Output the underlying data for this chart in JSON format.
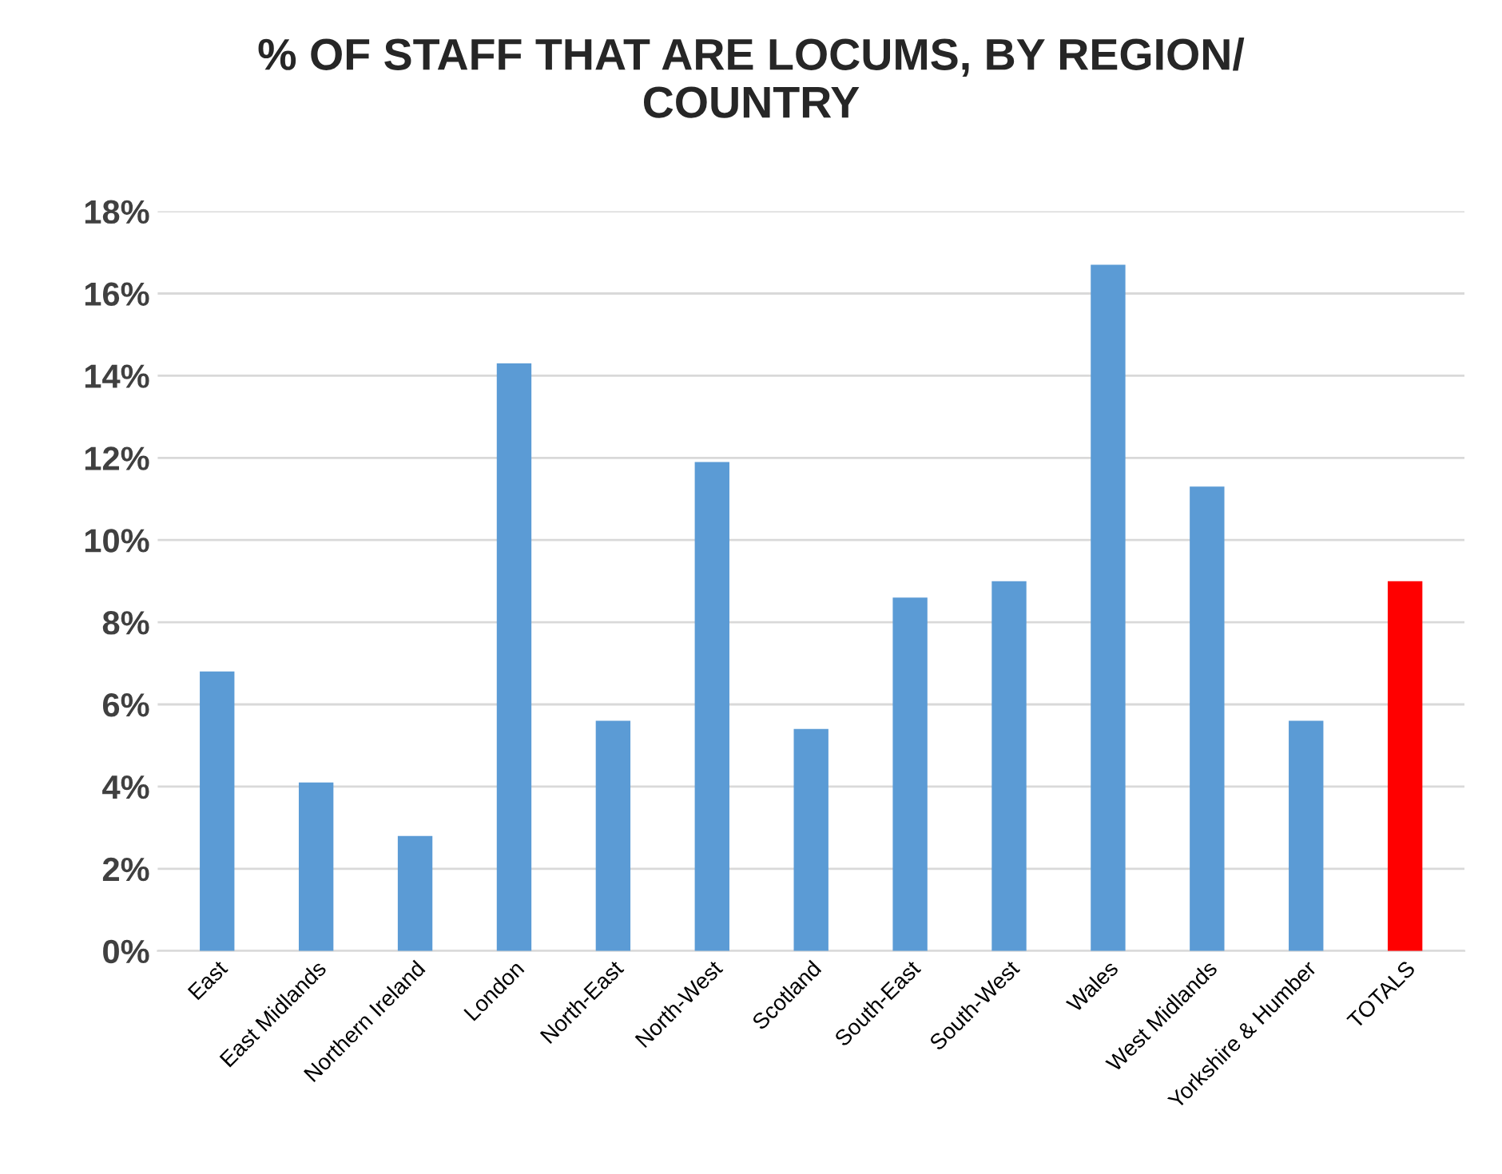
{
  "chart_data": {
    "type": "bar",
    "title": "% OF STAFF THAT ARE LOCUMS, BY REGION/\nCOUNTRY",
    "categories": [
      "East",
      "East Midlands",
      "Northern Ireland",
      "London",
      "North-East",
      "North-West",
      "Scotland",
      "South-East",
      "South-West",
      "Wales",
      "West Midlands",
      "Yorkshire & Humber",
      "TOTALS"
    ],
    "values": [
      6.8,
      4.1,
      2.8,
      14.3,
      5.6,
      11.9,
      5.4,
      8.6,
      9.0,
      16.7,
      11.3,
      5.6,
      9.0
    ],
    "colors": [
      "#5b9bd5",
      "#5b9bd5",
      "#5b9bd5",
      "#5b9bd5",
      "#5b9bd5",
      "#5b9bd5",
      "#5b9bd5",
      "#5b9bd5",
      "#5b9bd5",
      "#5b9bd5",
      "#5b9bd5",
      "#5b9bd5",
      "#ff0000"
    ],
    "ylim": [
      0,
      18
    ],
    "yticks": [
      {
        "value": 0,
        "label": "0%"
      },
      {
        "value": 2,
        "label": "2%"
      },
      {
        "value": 4,
        "label": "4%"
      },
      {
        "value": 6,
        "label": "6%"
      },
      {
        "value": 8,
        "label": "8%"
      },
      {
        "value": 10,
        "label": "10%"
      },
      {
        "value": 12,
        "label": "12%"
      },
      {
        "value": 14,
        "label": "14%"
      },
      {
        "value": 16,
        "label": "16%"
      },
      {
        "value": 18,
        "label": "18%"
      }
    ],
    "grid": "y"
  }
}
